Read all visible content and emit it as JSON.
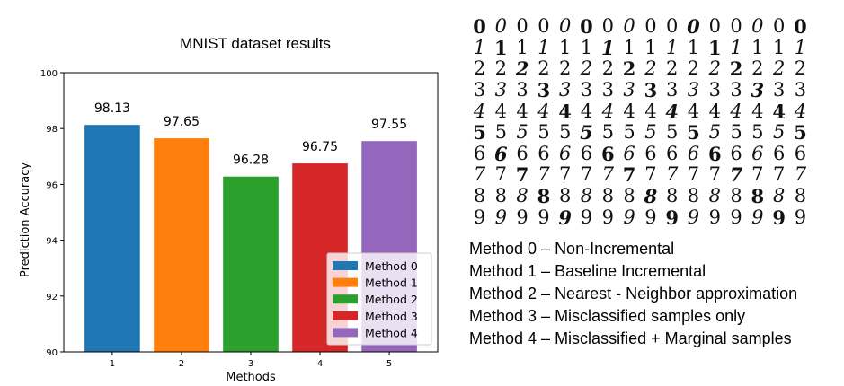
{
  "chart_data": {
    "type": "bar",
    "title": "MNIST dataset results",
    "xlabel": "Methods",
    "ylabel": "Prediction Accuracy",
    "categories": [
      "1",
      "2",
      "3",
      "4",
      "5"
    ],
    "values": [
      98.13,
      97.65,
      96.28,
      96.75,
      97.55
    ],
    "value_labels": [
      "98.13",
      "97.65",
      "96.28",
      "96.75",
      "97.55"
    ],
    "ylim": [
      90,
      100
    ],
    "yticks": [
      90,
      92,
      94,
      96,
      98,
      100
    ],
    "colors": [
      "#1f77b4",
      "#ff7f0e",
      "#2ca02c",
      "#d62728",
      "#9467bd"
    ],
    "legend": {
      "placement": "lower-right",
      "entries": [
        "Method 0",
        "Method 1",
        "Method 2",
        "Method 3",
        "Method 4"
      ]
    },
    "grid": false
  },
  "digits": [
    "0",
    "1",
    "2",
    "3",
    "4",
    "5",
    "6",
    "7",
    "8",
    "9"
  ],
  "methods_legend": [
    "Method 0 – Non-Incremental",
    "Method 1 – Baseline Incremental",
    "Method 2 – Nearest - Neighbor approximation",
    "Method 3 – Misclassified samples only",
    "Method 4 – Misclassified + Marginal samples"
  ]
}
